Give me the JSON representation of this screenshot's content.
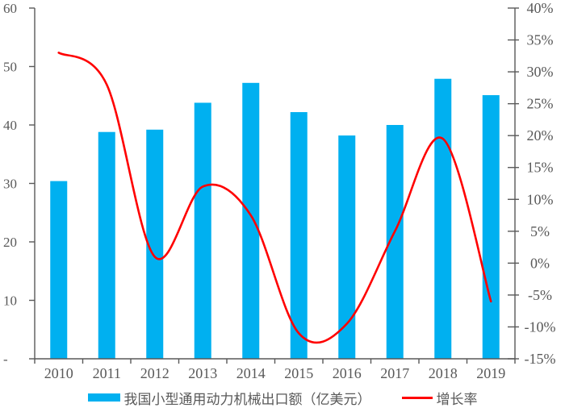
{
  "colors": {
    "bar": "#00B0F0",
    "line": "#FF0000",
    "axis": "#595959",
    "text": "#595959"
  },
  "legend": {
    "bar_label": "我国小型通用动力机械出口额（亿美元）",
    "line_label": "增长率"
  },
  "chart_data": {
    "type": "bar",
    "subtype": "combo-bar-line",
    "title": "",
    "categories": [
      "2010",
      "2011",
      "2012",
      "2013",
      "2014",
      "2015",
      "2016",
      "2017",
      "2018",
      "2019"
    ],
    "series": [
      {
        "name": "我国小型通用动力机械出口额（亿美元）",
        "type": "bar",
        "axis": "left",
        "color": "#00B0F0",
        "values": [
          30.4,
          38.8,
          39.2,
          43.8,
          47.2,
          42.2,
          38.2,
          40.0,
          47.9,
          45.1
        ]
      },
      {
        "name": "增长率",
        "type": "line",
        "axis": "right",
        "color": "#FF0000",
        "smooth": true,
        "values": [
          33,
          28,
          1,
          12,
          7.5,
          -11,
          -9.5,
          5,
          19.5,
          -6
        ]
      }
    ],
    "left_axis": {
      "min": 0,
      "max": 60,
      "step": 10,
      "tick_labels": [
        "-",
        "10",
        "20",
        "30",
        "40",
        "50",
        "60"
      ]
    },
    "right_axis": {
      "min": -15,
      "max": 40,
      "step": 5,
      "tick_labels": [
        "-15%",
        "-10%",
        "-5%",
        "0%",
        "5%",
        "10%",
        "15%",
        "20%",
        "25%",
        "30%",
        "35%",
        "40%"
      ]
    },
    "grid": false,
    "legend_position": "bottom"
  }
}
